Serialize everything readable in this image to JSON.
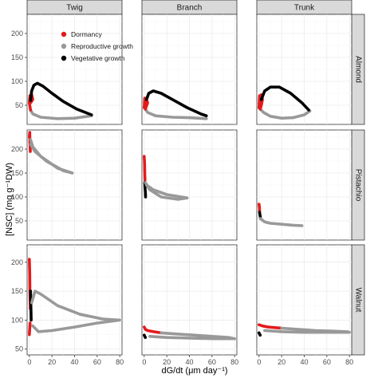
{
  "chart_data": {
    "type": "line",
    "xlabel": "dG/dt (μm day⁻¹)",
    "ylabel": "[NSC] (mg g⁻¹DW)",
    "column_strips": [
      "Twig",
      "Branch",
      "Trunk"
    ],
    "row_strips": [
      "Almond",
      "Pistachio",
      "Walnut"
    ],
    "xlim": [
      -2,
      82
    ],
    "x_ticks": [
      0,
      20,
      40,
      60,
      80
    ],
    "row_ylims": [
      [
        10,
        240
      ],
      [
        10,
        240
      ],
      [
        40,
        230
      ]
    ],
    "row_y_ticks": [
      [
        50,
        100,
        150,
        200
      ],
      [
        50,
        100,
        150,
        200
      ],
      [
        50,
        100,
        150,
        200
      ]
    ],
    "grid": true,
    "legend": {
      "placement": "top-left of Twig/Almond panel",
      "entries": [
        {
          "label": "Dormancy",
          "color": "#e31a1c"
        },
        {
          "label": "Reproductive growth",
          "color": "#999999"
        },
        {
          "label": "Vegetative growth",
          "color": "#000000"
        }
      ]
    },
    "phase_colors": {
      "dormancy": "#e31a1c",
      "reproductive": "#999999",
      "vegetative": "#000000"
    },
    "panels": [
      {
        "row": "Almond",
        "col": "Twig",
        "segments": [
          {
            "phase": "reproductive",
            "x": [
              1,
              3,
              10,
              25,
              40,
              55
            ],
            "y": [
              40,
              32,
              25,
              22,
              23,
              28
            ]
          },
          {
            "phase": "dormancy",
            "x": [
              1,
              0,
              0.5,
              1,
              2,
              3,
              1
            ],
            "y": [
              40,
              55,
              70,
              58,
              72,
              62,
              55
            ]
          },
          {
            "phase": "vegetative",
            "x": [
              1,
              2,
              4,
              7,
              12,
              20,
              30,
              42,
              55
            ],
            "y": [
              60,
              80,
              92,
              96,
              90,
              75,
              58,
              42,
              30
            ]
          }
        ]
      },
      {
        "row": "Almond",
        "col": "Branch",
        "segments": [
          {
            "phase": "reproductive",
            "x": [
              1,
              3,
              10,
              25,
              40,
              55
            ],
            "y": [
              42,
              35,
              28,
              25,
              24,
              22
            ]
          },
          {
            "phase": "dormancy",
            "x": [
              0,
              0.5,
              1,
              2,
              3,
              1
            ],
            "y": [
              45,
              65,
              50,
              62,
              55,
              42
            ]
          },
          {
            "phase": "vegetative",
            "x": [
              2,
              4,
              8,
              15,
              25,
              38,
              50,
              55
            ],
            "y": [
              62,
              75,
              80,
              75,
              62,
              45,
              32,
              28
            ]
          }
        ]
      },
      {
        "row": "Almond",
        "col": "Trunk",
        "segments": [
          {
            "phase": "reproductive",
            "x": [
              1,
              4,
              10,
              20,
              30,
              40,
              45
            ],
            "y": [
              42,
              35,
              27,
              23,
              24,
              30,
              38
            ]
          },
          {
            "phase": "dormancy",
            "x": [
              0,
              0.5,
              1,
              2,
              3,
              2,
              1
            ],
            "y": [
              45,
              70,
              55,
              72,
              62,
              50,
              42
            ]
          },
          {
            "phase": "vegetative",
            "x": [
              2,
              5,
              10,
              18,
              28,
              38,
              44
            ],
            "y": [
              62,
              80,
              88,
              88,
              75,
              55,
              40
            ]
          }
        ]
      },
      {
        "row": "Pistachio",
        "col": "Twig",
        "segments": [
          {
            "phase": "dormancy",
            "x": [
              0,
              0.3,
              0.5,
              0.8
            ],
            "y": [
              225,
              235,
              215,
              195
            ]
          },
          {
            "phase": "reproductive",
            "x": [
              1,
              5,
              15,
              30,
              38,
              25,
              10,
              3,
              1
            ],
            "y": [
              210,
              195,
              175,
              155,
              150,
              160,
              185,
              205,
              220
            ]
          }
        ]
      },
      {
        "row": "Pistachio",
        "col": "Branch",
        "segments": [
          {
            "phase": "dormancy",
            "x": [
              0,
              0.3,
              0.5,
              0.7
            ],
            "y": [
              185,
              170,
              150,
              135
            ]
          },
          {
            "phase": "vegetative",
            "x": [
              0.5,
              0.7,
              1,
              1.2
            ],
            "y": [
              130,
              120,
              110,
              100
            ]
          },
          {
            "phase": "reproductive",
            "x": [
              1,
              5,
              15,
              30,
              38,
              20,
              8,
              2
            ],
            "y": [
              130,
              115,
              100,
              95,
              98,
              105,
              115,
              125
            ]
          }
        ]
      },
      {
        "row": "Pistachio",
        "col": "Trunk",
        "segments": [
          {
            "phase": "dormancy",
            "x": [
              0,
              0.3,
              0.5
            ],
            "y": [
              85,
              78,
              70
            ]
          },
          {
            "phase": "vegetative",
            "x": [
              0.5,
              0.8,
              1.2
            ],
            "y": [
              68,
              62,
              58
            ]
          },
          {
            "phase": "reproductive",
            "x": [
              1,
              5,
              10,
              20,
              30,
              38
            ],
            "y": [
              55,
              48,
              45,
              43,
              41,
              40
            ]
          }
        ]
      },
      {
        "row": "Walnut",
        "col": "Twig",
        "segments": [
          {
            "phase": "dormancy",
            "x": [
              0,
              0.3,
              0.5,
              0.8
            ],
            "y": [
              205,
              180,
              150,
              120
            ]
          },
          {
            "phase": "vegetative",
            "x": [
              1,
              1.3,
              1.6
            ],
            "y": [
              150,
              125,
              100
            ]
          },
          {
            "phase": "dormancy",
            "x": [
              0,
              0.3,
              0.6
            ],
            "y": [
              75,
              85,
              95
            ]
          },
          {
            "phase": "reproductive",
            "x": [
              2,
              5,
              10,
              25,
              45,
              65,
              80,
              60,
              40,
              20,
              8,
              3
            ],
            "y": [
              130,
              150,
              145,
              125,
              110,
              102,
              100,
              95,
              88,
              82,
              80,
              90
            ]
          }
        ]
      },
      {
        "row": "Walnut",
        "col": "Branch",
        "segments": [
          {
            "phase": "dormancy",
            "x": [
              0,
              1,
              3,
              8,
              15
            ],
            "y": [
              88,
              84,
              82,
              80,
              78
            ]
          },
          {
            "phase": "vegetative",
            "x": [
              0,
              0.5,
              1
            ],
            "y": [
              74,
              72,
              70
            ]
          },
          {
            "phase": "reproductive",
            "x": [
              15,
              30,
              45,
              60,
              75,
              80,
              60,
              40,
              20,
              5
            ],
            "y": [
              78,
              76,
              74,
              72,
              70,
              68,
              68,
              69,
              70,
              72
            ]
          }
        ]
      },
      {
        "row": "Walnut",
        "col": "Trunk",
        "segments": [
          {
            "phase": "dormancy",
            "x": [
              0,
              3,
              8,
              15,
              20
            ],
            "y": [
              92,
              90,
              88,
              87,
              86
            ]
          },
          {
            "phase": "vegetative",
            "x": [
              0,
              0.5,
              1
            ],
            "y": [
              78,
              76,
              74
            ]
          },
          {
            "phase": "reproductive",
            "x": [
              20,
              35,
              50,
              65,
              78,
              80,
              60,
              40,
              20,
              5
            ],
            "y": [
              86,
              84,
              82,
              81,
              80,
              79,
              79,
              79,
              80,
              82
            ]
          }
        ]
      }
    ]
  }
}
